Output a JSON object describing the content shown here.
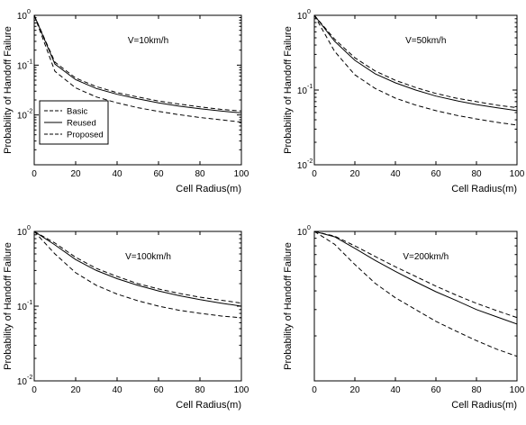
{
  "chart_data": [
    {
      "type": "line",
      "annotation": "V=10km/h",
      "xlabel": "Cell Radius(m)",
      "ylabel": "Probability of Handoff Failure",
      "xlim": [
        0,
        100
      ],
      "ylim": [
        0.001,
        1
      ],
      "yscale": "log",
      "xticks": [
        "0",
        "20",
        "40",
        "60",
        "80",
        "100"
      ],
      "yticks": [
        {
          "base": "10",
          "exp": "0",
          "value": 1
        },
        {
          "base": "10",
          "exp": "-1",
          "value": 0.1
        },
        {
          "base": "10",
          "exp": "-2",
          "value": 0.01
        }
      ],
      "legend": {
        "placement": "left",
        "entries": [
          "Basic",
          "Reused",
          "Proposed"
        ]
      },
      "series": [
        {
          "name": "Basic",
          "dash": "dashed",
          "x": [
            0,
            10,
            20,
            30,
            40,
            50,
            60,
            70,
            80,
            90,
            100
          ],
          "values": [
            1.0,
            0.115,
            0.055,
            0.037,
            0.028,
            0.023,
            0.019,
            0.0165,
            0.0145,
            0.013,
            0.012
          ]
        },
        {
          "name": "Reused",
          "dash": "solid",
          "x": [
            0,
            10,
            20,
            30,
            40,
            50,
            60,
            70,
            80,
            90,
            100
          ],
          "values": [
            1.0,
            0.105,
            0.051,
            0.034,
            0.026,
            0.021,
            0.0175,
            0.015,
            0.0133,
            0.012,
            0.011
          ]
        },
        {
          "name": "Proposed",
          "dash": "dashed",
          "x": [
            0,
            10,
            20,
            30,
            40,
            50,
            60,
            70,
            80,
            90,
            100
          ],
          "values": [
            1.0,
            0.075,
            0.035,
            0.023,
            0.0175,
            0.014,
            0.0118,
            0.0101,
            0.0089,
            0.008,
            0.0072
          ]
        }
      ]
    },
    {
      "type": "line",
      "annotation": "V=50km/h",
      "xlabel": "Cell Radius(m)",
      "ylabel": "Probability of Handoff Failure",
      "xlim": [
        0,
        100
      ],
      "ylim": [
        0.01,
        1
      ],
      "yscale": "log",
      "xticks": [
        "0",
        "20",
        "40",
        "60",
        "80",
        "100"
      ],
      "yticks": [
        {
          "base": "10",
          "exp": "0",
          "value": 1
        },
        {
          "base": "10",
          "exp": "-1",
          "value": 0.1
        },
        {
          "base": "10",
          "exp": "-2",
          "value": 0.01
        }
      ],
      "series": [
        {
          "name": "Basic",
          "dash": "dashed",
          "x": [
            0,
            10,
            20,
            30,
            40,
            50,
            60,
            70,
            80,
            90,
            100
          ],
          "values": [
            1.0,
            0.48,
            0.27,
            0.18,
            0.135,
            0.108,
            0.09,
            0.078,
            0.07,
            0.063,
            0.058
          ]
        },
        {
          "name": "Reused",
          "dash": "solid",
          "x": [
            0,
            10,
            20,
            30,
            40,
            50,
            60,
            70,
            80,
            90,
            100
          ],
          "values": [
            1.0,
            0.45,
            0.25,
            0.165,
            0.125,
            0.1,
            0.083,
            0.072,
            0.064,
            0.058,
            0.053
          ]
        },
        {
          "name": "Proposed",
          "dash": "dashed",
          "x": [
            0,
            10,
            20,
            30,
            40,
            50,
            60,
            70,
            80,
            90,
            100
          ],
          "values": [
            1.0,
            0.33,
            0.16,
            0.105,
            0.078,
            0.063,
            0.053,
            0.046,
            0.041,
            0.037,
            0.034
          ]
        }
      ]
    },
    {
      "type": "line",
      "annotation": "V=100km/h",
      "xlabel": "Cell Radius(m)",
      "ylabel": "Probability of Handoff Failure",
      "xlim": [
        0,
        100
      ],
      "ylim": [
        0.01,
        1
      ],
      "yscale": "log",
      "xticks": [
        "0",
        "20",
        "40",
        "60",
        "80",
        "100"
      ],
      "yticks": [
        {
          "base": "10",
          "exp": "0",
          "value": 1
        },
        {
          "base": "10",
          "exp": "-1",
          "value": 0.1
        },
        {
          "base": "10",
          "exp": "-2",
          "value": 0.01
        }
      ],
      "series": [
        {
          "name": "Basic",
          "dash": "dashed",
          "x": [
            0,
            10,
            20,
            30,
            40,
            50,
            60,
            70,
            80,
            90,
            100
          ],
          "values": [
            1.0,
            0.7,
            0.45,
            0.32,
            0.25,
            0.2,
            0.17,
            0.148,
            0.132,
            0.12,
            0.11
          ]
        },
        {
          "name": "Reused",
          "dash": "solid",
          "x": [
            0,
            10,
            20,
            30,
            40,
            50,
            60,
            70,
            80,
            90,
            100
          ],
          "values": [
            1.0,
            0.66,
            0.42,
            0.3,
            0.233,
            0.19,
            0.16,
            0.138,
            0.122,
            0.11,
            0.1
          ]
        },
        {
          "name": "Proposed",
          "dash": "dashed",
          "x": [
            0,
            10,
            20,
            30,
            40,
            50,
            60,
            70,
            80,
            90,
            100
          ],
          "values": [
            1.0,
            0.5,
            0.28,
            0.19,
            0.145,
            0.118,
            0.1,
            0.088,
            0.08,
            0.074,
            0.07
          ]
        }
      ]
    },
    {
      "type": "line",
      "annotation": "V=200km/h",
      "xlabel": "Cell Radius(m)",
      "ylabel": "Probability of Handoff Failure",
      "xlim": [
        0,
        100
      ],
      "ylim": [
        0.1,
        1
      ],
      "yscale": "log",
      "xticks": [
        "0",
        "20",
        "40",
        "60",
        "80",
        "100"
      ],
      "yticks": [
        {
          "base": "10",
          "exp": "0",
          "value": 1
        }
      ],
      "series": [
        {
          "name": "Basic",
          "dash": "dashed",
          "x": [
            0,
            10,
            20,
            30,
            40,
            50,
            60,
            70,
            80,
            90,
            100
          ],
          "values": [
            1.0,
            0.93,
            0.8,
            0.68,
            0.58,
            0.5,
            0.43,
            0.375,
            0.33,
            0.295,
            0.265
          ]
        },
        {
          "name": "Reused",
          "dash": "solid",
          "x": [
            0,
            10,
            20,
            30,
            40,
            50,
            60,
            70,
            80,
            90,
            100
          ],
          "values": [
            1.0,
            0.92,
            0.77,
            0.64,
            0.54,
            0.46,
            0.395,
            0.345,
            0.3,
            0.268,
            0.24
          ]
        },
        {
          "name": "Proposed",
          "dash": "dashed",
          "x": [
            0,
            10,
            20,
            30,
            40,
            50,
            60,
            70,
            80,
            90,
            100
          ],
          "values": [
            1.0,
            0.82,
            0.6,
            0.45,
            0.36,
            0.3,
            0.25,
            0.215,
            0.186,
            0.163,
            0.146
          ]
        }
      ]
    }
  ]
}
